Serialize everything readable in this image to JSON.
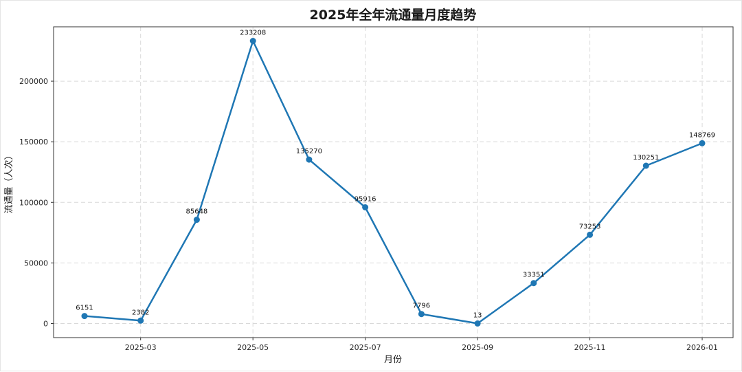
{
  "chart_data": {
    "type": "line",
    "title": "2025年全年流通量月度趋势",
    "xlabel": "月份",
    "ylabel": "流通量（人次）",
    "x": [
      "2025-02",
      "2025-03",
      "2025-04",
      "2025-05",
      "2025-06",
      "2025-07",
      "2025-08",
      "2025-09",
      "2025-10",
      "2025-11",
      "2025-12",
      "2026-01"
    ],
    "values": [
      6151,
      2382,
      85648,
      233208,
      135270,
      95916,
      7796,
      13,
      33351,
      73253,
      130251,
      148769
    ],
    "x_tick_labels": [
      "2025-03",
      "2025-05",
      "2025-07",
      "2025-09",
      "2025-11",
      "2026-01"
    ],
    "y_ticks": [
      0,
      50000,
      100000,
      150000,
      200000
    ],
    "ylim": [
      -11650,
      244870
    ],
    "grid": true,
    "legend": "none",
    "colors": {
      "line": "#1f77b4",
      "marker": "#1f77b4",
      "grid": "#d9d9d9",
      "spine": "#333333",
      "text": "#1a1a1a"
    }
  }
}
